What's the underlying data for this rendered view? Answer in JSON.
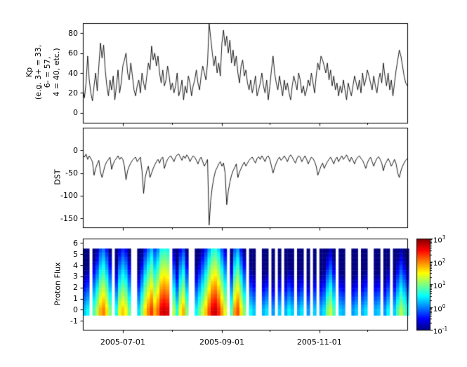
{
  "figure": {
    "bg": "#ffffff",
    "axis_color": "#000000",
    "series_color": "#000000"
  },
  "x_axis": {
    "range_days": [
      0,
      203
    ],
    "major_ticks": [
      {
        "label": "2005-07-01",
        "day": 25
      },
      {
        "label": "2005-09-01",
        "day": 87
      },
      {
        "label": "2005-11-01",
        "day": 148
      }
    ],
    "minor_tick_days": [
      56,
      117,
      178
    ]
  },
  "chart_data": [
    {
      "type": "line",
      "name": "kp-index",
      "ylabel": "Kp\n(e.g. 3+ = 33,\n6- = 57,\n4 = 40, etc.)",
      "ylim": [
        -10,
        90
      ],
      "yticks": [
        0,
        20,
        40,
        60,
        80
      ],
      "x_start_day": 0,
      "x_step_days": 1,
      "values": [
        23,
        15,
        30,
        57,
        33,
        20,
        12,
        27,
        40,
        22,
        47,
        70,
        55,
        68,
        43,
        27,
        17,
        33,
        23,
        37,
        13,
        27,
        43,
        20,
        30,
        47,
        53,
        60,
        40,
        33,
        50,
        37,
        23,
        17,
        27,
        33,
        20,
        40,
        30,
        23,
        37,
        50,
        43,
        67,
        53,
        60,
        47,
        57,
        40,
        30,
        43,
        27,
        33,
        47,
        37,
        23,
        30,
        20,
        27,
        40,
        17,
        23,
        33,
        13,
        27,
        20,
        37,
        30,
        17,
        27,
        33,
        43,
        30,
        23,
        37,
        47,
        40,
        33,
        50,
        90,
        75,
        60,
        47,
        57,
        40,
        50,
        37,
        70,
        83,
        67,
        77,
        60,
        73,
        50,
        63,
        47,
        57,
        40,
        30,
        47,
        53,
        37,
        43,
        30,
        23,
        33,
        20,
        27,
        37,
        17,
        23,
        30,
        40,
        27,
        20,
        33,
        13,
        27,
        43,
        57,
        40,
        30,
        23,
        37,
        27,
        17,
        33,
        23,
        30,
        20,
        13,
        27,
        37,
        30,
        23,
        40,
        33,
        20,
        27,
        17,
        23,
        33,
        27,
        40,
        30,
        20,
        37,
        50,
        43,
        57,
        53,
        47,
        40,
        50,
        33,
        43,
        27,
        37,
        23,
        30,
        17,
        27,
        20,
        33,
        23,
        13,
        30,
        23,
        17,
        27,
        37,
        30,
        23,
        33,
        20,
        40,
        27,
        33,
        43,
        37,
        30,
        23,
        37,
        27,
        20,
        33,
        40,
        30,
        50,
        37,
        27,
        40,
        23,
        33,
        17,
        30,
        43,
        53,
        63,
        57,
        47,
        37,
        30,
        27
      ]
    },
    {
      "type": "line",
      "name": "dst-index",
      "ylabel": "DST",
      "ylim": [
        -170,
        50
      ],
      "yticks": [
        0,
        -50,
        -100,
        -150
      ],
      "x_start_day": 0,
      "x_step_days": 1,
      "values": [
        -10,
        -15,
        -8,
        -20,
        -12,
        -18,
        -25,
        -55,
        -40,
        -30,
        -22,
        -48,
        -60,
        -45,
        -32,
        -25,
        -20,
        -15,
        -42,
        -30,
        -22,
        -18,
        -12,
        -20,
        -15,
        -20,
        -35,
        -65,
        -45,
        -35,
        -28,
        -22,
        -18,
        -15,
        -25,
        -20,
        -15,
        -45,
        -95,
        -60,
        -45,
        -35,
        -60,
        -50,
        -40,
        -32,
        -25,
        -20,
        -28,
        -18,
        -15,
        -40,
        -28,
        -20,
        -15,
        -12,
        -18,
        -25,
        -15,
        -10,
        -8,
        -15,
        -22,
        -12,
        -18,
        -10,
        -15,
        -25,
        -18,
        -12,
        -15,
        -22,
        -30,
        -20,
        -15,
        -25,
        -35,
        -28,
        -20,
        -165,
        -110,
        -80,
        -60,
        -45,
        -38,
        -30,
        -25,
        -35,
        -28,
        -50,
        -120,
        -90,
        -70,
        -55,
        -45,
        -38,
        -30,
        -60,
        -48,
        -40,
        -32,
        -26,
        -35,
        -28,
        -22,
        -18,
        -15,
        -22,
        -28,
        -18,
        -14,
        -20,
        -12,
        -18,
        -25,
        -15,
        -12,
        -20,
        -35,
        -50,
        -38,
        -28,
        -20,
        -15,
        -22,
        -18,
        -12,
        -18,
        -25,
        -15,
        -10,
        -15,
        -22,
        -28,
        -18,
        -12,
        -15,
        -25,
        -18,
        -12,
        -20,
        -30,
        -22,
        -15,
        -18,
        -25,
        -35,
        -55,
        -45,
        -35,
        -28,
        -40,
        -32,
        -25,
        -20,
        -15,
        -22,
        -30,
        -20,
        -15,
        -25,
        -18,
        -12,
        -20,
        -15,
        -10,
        -18,
        -25,
        -15,
        -22,
        -30,
        -20,
        -15,
        -12,
        -18,
        -22,
        -30,
        -40,
        -28,
        -20,
        -15,
        -25,
        -35,
        -25,
        -18,
        -14,
        -20,
        -28,
        -45,
        -32,
        -25,
        -18,
        -25,
        -35,
        -28,
        -20,
        -30,
        -50,
        -60,
        -45,
        -35,
        -28,
        -22,
        -18
      ]
    },
    {
      "type": "heatmap",
      "name": "proton-flux",
      "ylabel": "Proton Flux",
      "ylim": [
        -1.8,
        6.4
      ],
      "yticks": [
        -1,
        0,
        1,
        2,
        3,
        4,
        5,
        6
      ],
      "band_range": [
        -0.5,
        5.5
      ],
      "x_start_day": 0,
      "x_step_days": 2,
      "energy_falloff_per_unit": 0.38,
      "log10_flux": [
        0.3,
        0.5,
        null,
        0.8,
        1.2,
        1.8,
        2.0,
        1.6,
        1.0,
        null,
        0.6,
        1.4,
        1.7,
        1.5,
        0.9,
        null,
        null,
        0.4,
        1.0,
        1.6,
        2.0,
        2.3,
        1.8,
        2.1,
        2.6,
        2.7,
        2.6,
        null,
        1.2,
        0.6,
        1.5,
        1.8,
        1.0,
        null,
        null,
        0.5,
        0.9,
        1.3,
        1.7,
        2.2,
        2.6,
        2.7,
        2.4,
        1.9,
        1.4,
        null,
        0.8,
        1.9,
        2.2,
        1.6,
        1.0,
        null,
        0.5,
        0.3,
        null,
        null,
        0.2,
        0.4,
        null,
        0.1,
        null,
        0.3,
        null,
        0.2,
        0.5,
        0.3,
        null,
        0.2,
        0.4,
        null,
        0.1,
        null,
        0.3,
        null,
        0.2,
        0.4,
        1.0,
        1.3,
        0.8,
        null,
        0.3,
        0.2,
        null,
        null,
        0.1,
        0.3,
        null,
        0.2,
        0.4,
        null,
        null,
        0.2,
        0.3,
        null,
        0.1,
        0.5,
        null,
        0.3,
        0.8,
        1.2,
        0.9,
        0.6
      ],
      "colorbar": {
        "scale": "log10",
        "range": [
          -1,
          3
        ],
        "tick_exponents": [
          3,
          2,
          1,
          0,
          -1
        ],
        "colormap": "jet"
      }
    }
  ]
}
